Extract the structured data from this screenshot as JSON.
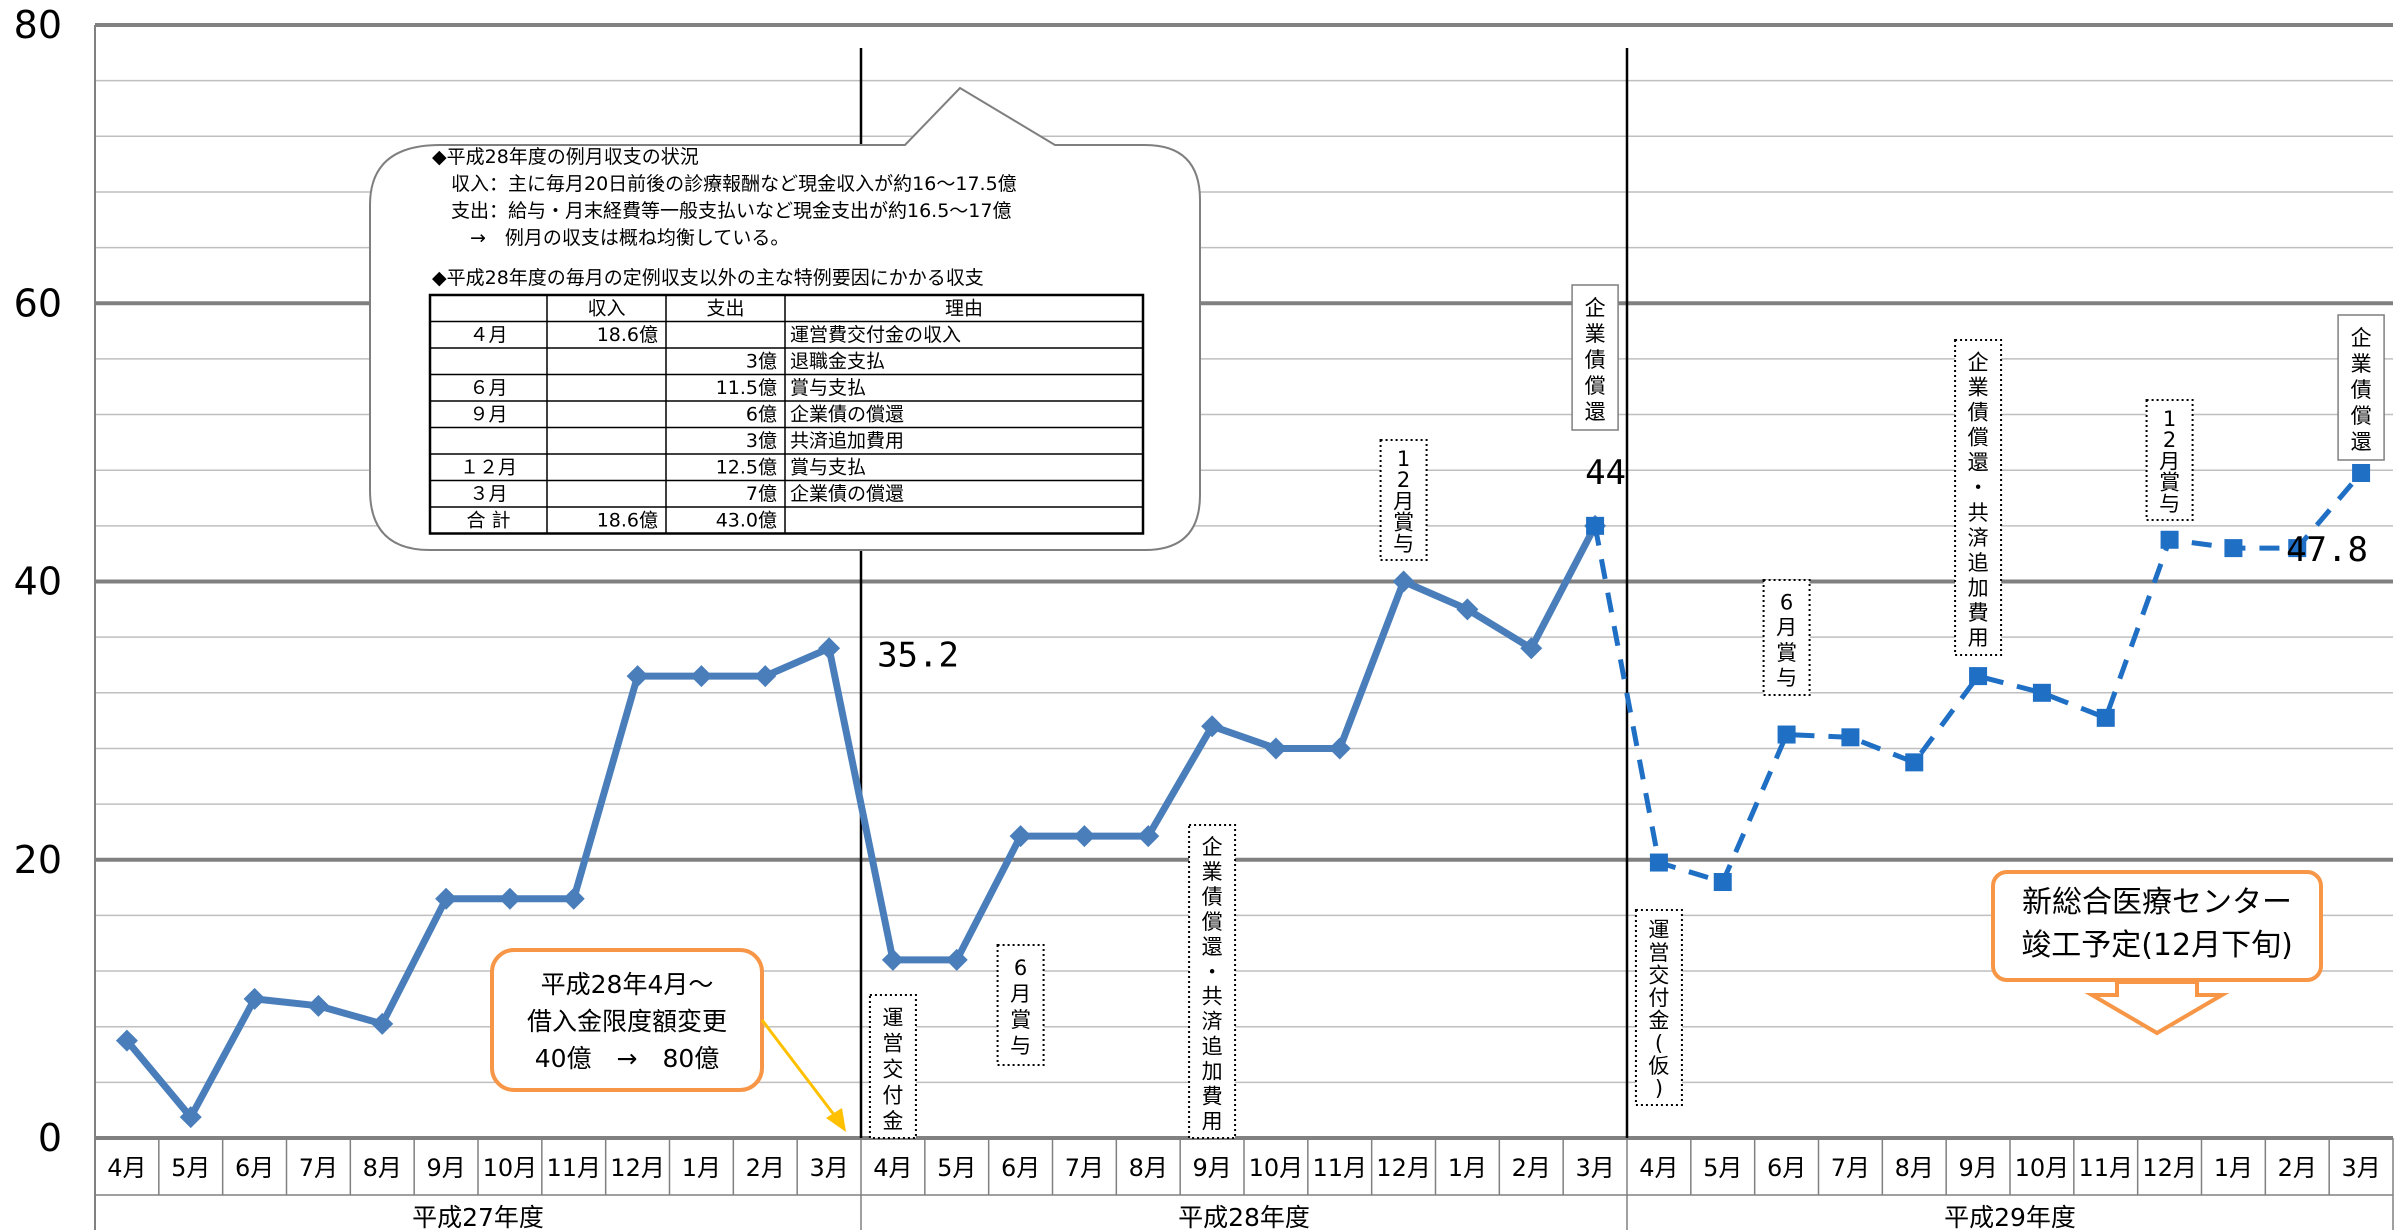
{
  "chart_data": {
    "type": "line",
    "ylim": [
      0,
      80
    ],
    "y_ticks": [
      "0",
      "20",
      "40",
      "60",
      "80"
    ],
    "grid": true,
    "months": [
      "4月",
      "5月",
      "6月",
      "7月",
      "8月",
      "9月",
      "10月",
      "11月",
      "12月",
      "1月",
      "2月",
      "3月",
      "4月",
      "5月",
      "6月",
      "7月",
      "8月",
      "9月",
      "10月",
      "11月",
      "12月",
      "1月",
      "2月",
      "3月",
      "4月",
      "5月",
      "6月",
      "7月",
      "8月",
      "9月",
      "10月",
      "11月",
      "12月",
      "1月",
      "2月",
      "3月"
    ],
    "fiscal_years": [
      "平成27年度",
      "平成28年度",
      "平成29年度"
    ],
    "series": [
      {
        "name": "",
        "style": "solid",
        "marker": "diamond",
        "color": "#4a7ebb",
        "values": [
          7,
          1.5,
          10,
          9.5,
          8.2,
          17.2,
          17.2,
          17.2,
          33.2,
          33.2,
          33.2,
          35.2,
          12.8,
          12.8,
          21.7,
          21.7,
          21.7,
          29.6,
          28,
          28,
          40,
          38,
          35.2,
          44,
          null,
          null,
          null,
          null,
          null,
          null,
          null,
          null,
          null,
          null,
          null,
          null
        ]
      },
      {
        "name": "",
        "style": "dashed",
        "marker": "square",
        "color": "#1f6fc5",
        "values": [
          null,
          null,
          null,
          null,
          null,
          null,
          null,
          null,
          null,
          null,
          null,
          null,
          null,
          null,
          null,
          null,
          null,
          null,
          null,
          null,
          null,
          null,
          null,
          44,
          19.8,
          18.4,
          29,
          28.8,
          27,
          33.2,
          32,
          30.2,
          43,
          42.4,
          42.4,
          47.8
        ]
      }
    ],
    "data_labels": [
      {
        "text": "35.2",
        "index": 11,
        "value": 35.2
      },
      {
        "text": "44",
        "index": 23,
        "value": 44
      },
      {
        "text": "47.8",
        "index": 35,
        "value": 47.8
      }
    ],
    "annotations": [
      {
        "text": "運営交付金",
        "index": 12,
        "border": "dotted"
      },
      {
        "text": "6月賞与",
        "index": 14,
        "border": "dotted"
      },
      {
        "text": "企業債償還・共済追加費用",
        "index": 17,
        "border": "dotted"
      },
      {
        "text": "12月賞与",
        "index": 20,
        "border": "dotted"
      },
      {
        "text": "企業債償還",
        "index": 23,
        "border": "solid"
      },
      {
        "text": "運営交付金(仮)",
        "index": 24,
        "border": "dotted"
      },
      {
        "text": "6月賞与",
        "index": 26,
        "border": "dotted"
      },
      {
        "text": "企業債償還・共済追加費用",
        "index": 29,
        "border": "dotted"
      },
      {
        "text": "12月賞与",
        "index": 32,
        "border": "dotted"
      },
      {
        "text": "企業債償還",
        "index": 35,
        "border": "solid"
      }
    ]
  },
  "bubble": {
    "lines": [
      "◆平成28年度の例月収支の状況",
      "　収入：主に毎月20日前後の診療報酬など現金収入が約16～17.5億",
      "　支出：給与・月末経費等一般支払いなど現金支出が約16.5～17億",
      "　　→　例月の収支は概ね均衡している。",
      "◆平成28年度の毎月の定例収支以外の主な特例要因にかかる収支"
    ],
    "table": {
      "headers": [
        "",
        "収入",
        "支出",
        "理由"
      ],
      "rows": [
        [
          "４月",
          "18.6億",
          "",
          "運営費交付金の収入"
        ],
        [
          "",
          "",
          "3億",
          "退職金支払"
        ],
        [
          "６月",
          "",
          "11.5億",
          "賞与支払"
        ],
        [
          "９月",
          "",
          "6億",
          "企業債の償還"
        ],
        [
          "",
          "",
          "3億",
          "共済追加費用"
        ],
        [
          "１２月",
          "",
          "12.5億",
          "賞与支払"
        ],
        [
          "３月",
          "",
          "7億",
          "企業債の償還"
        ],
        [
          "合 計",
          "18.6億",
          "43.0億",
          ""
        ]
      ]
    }
  },
  "callout_left": {
    "lines": [
      "平成28年4月～",
      "借入金限度額変更",
      "40億　→　80億"
    ],
    "border_color": "#f79646",
    "arrow_color": "#ffc000"
  },
  "callout_right": {
    "lines": [
      "新総合医療センター",
      "竣工予定(12月下旬)"
    ],
    "border_color": "#f79646"
  }
}
